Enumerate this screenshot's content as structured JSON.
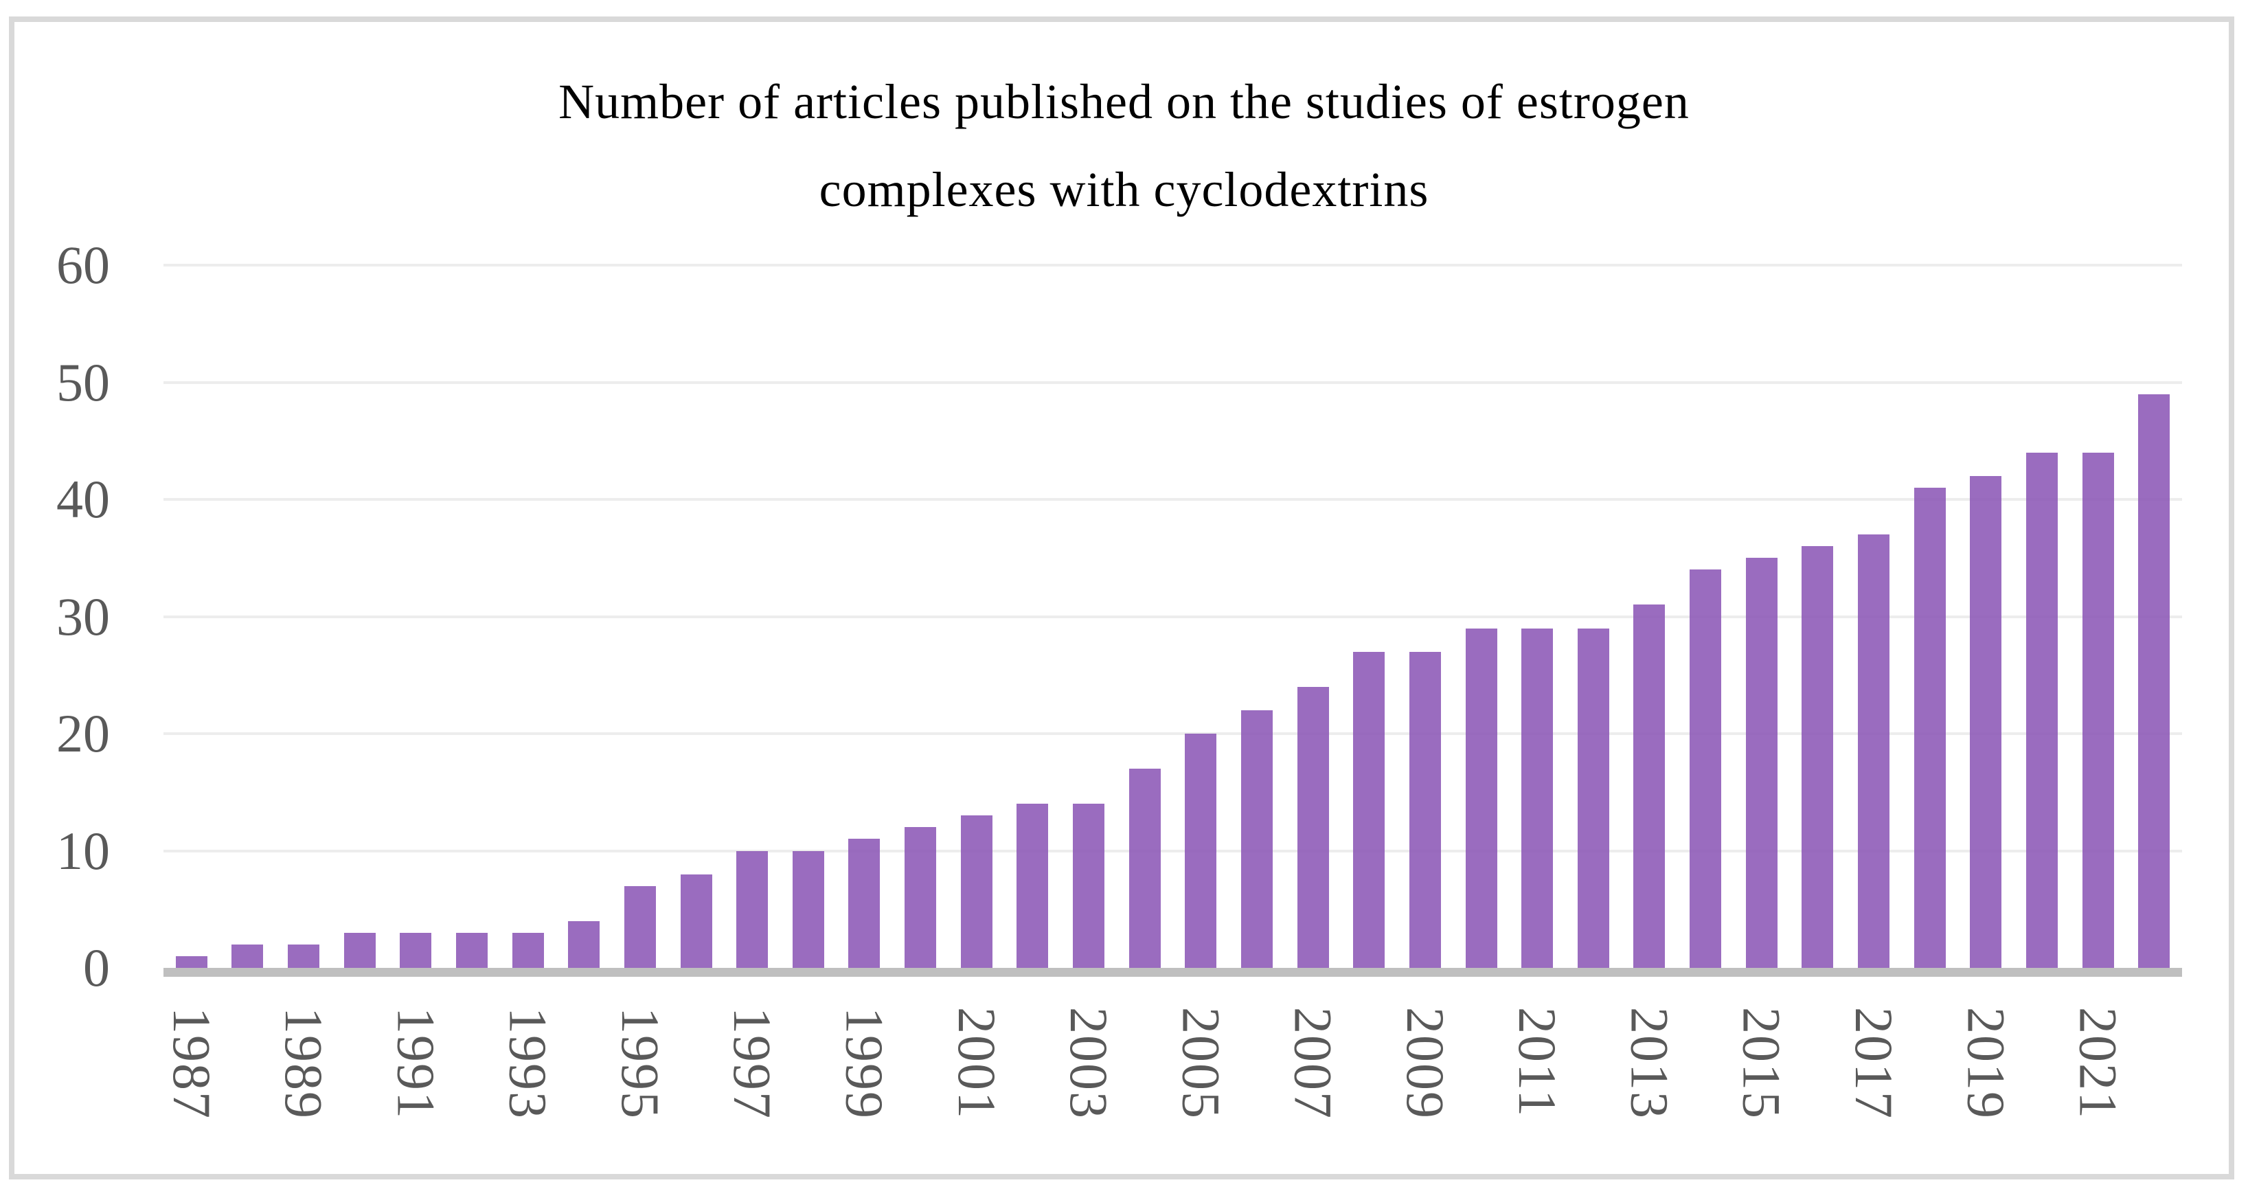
{
  "title": {
    "lines": [
      "Number of articles published on the studies of estrogen",
      "complexes with cyclodextrins"
    ],
    "full": "Number of articles published on the studies of estrogen complexes with cyclodextrins"
  },
  "colors": {
    "bar_fill": "rgba(140,88,182,0.88)",
    "bar_solid_hex": "#9a6cbf",
    "gridline": "#ededed",
    "axis_line": "#bfbfbf",
    "tick_label": "#595959",
    "title_text": "#000000",
    "outer_border": "#d9d9d9"
  },
  "chart_data": {
    "type": "bar",
    "title": "Number of articles published on the studies of estrogen complexes with cyclodextrins",
    "xlabel": "",
    "ylabel": "",
    "categories": [
      "1987",
      "1988",
      "1989",
      "1990",
      "1991",
      "1992",
      "1993",
      "1994",
      "1995",
      "1996",
      "1997",
      "1998",
      "1999",
      "2000",
      "2001",
      "2002",
      "2003",
      "2004",
      "2005",
      "2006",
      "2007",
      "2008",
      "2009",
      "2010",
      "2011",
      "2012",
      "2013",
      "2014",
      "2015",
      "2016",
      "2017",
      "2018",
      "2019",
      "2020",
      "2021",
      "2022"
    ],
    "values": [
      1,
      2,
      2,
      3,
      3,
      3,
      3,
      4,
      7,
      8,
      10,
      10,
      11,
      12,
      13,
      14,
      14,
      17,
      20,
      22,
      24,
      27,
      27,
      29,
      29,
      29,
      31,
      34,
      35,
      36,
      37,
      41,
      42,
      44,
      44,
      49
    ],
    "ylim": [
      0,
      60
    ],
    "ytick_labels": [
      "0",
      "10",
      "20",
      "30",
      "40",
      "50",
      "60"
    ],
    "ytick_values": [
      0,
      10,
      20,
      30,
      40,
      50,
      60
    ],
    "xtick_labels": [
      "1987",
      "1989",
      "1991",
      "1993",
      "1995",
      "1997",
      "1999",
      "2001",
      "2003",
      "2005",
      "2007",
      "2009",
      "2011",
      "2013",
      "2015",
      "2017",
      "2019",
      "2021"
    ],
    "grid": "horizontal",
    "legend": "none",
    "bar_color_hex": "#9a6cbf"
  }
}
